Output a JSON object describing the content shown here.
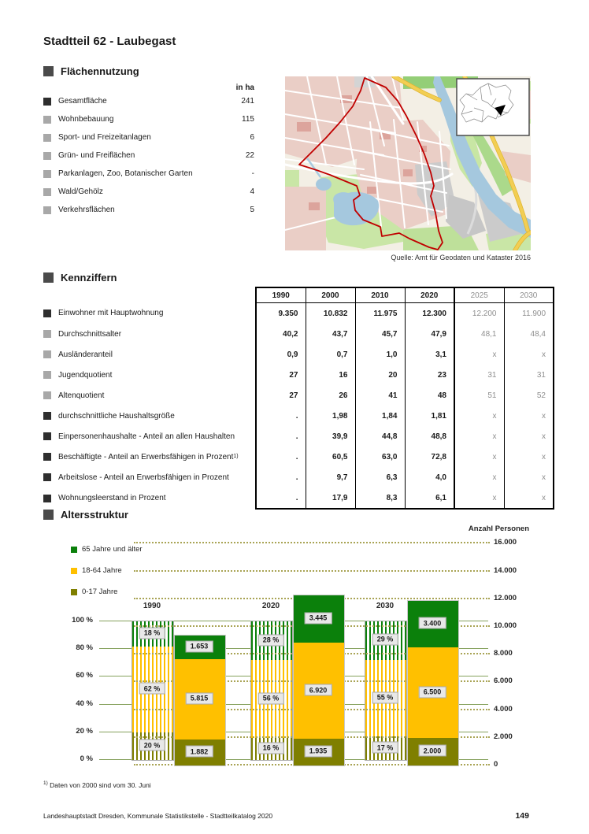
{
  "page": {
    "title": "Stadtteil 62 - Laubegast",
    "footnote_marker": "1)",
    "footnote_text": "Daten von 2000 sind vom 30. Juni",
    "footer_text": "Landeshauptstadt Dresden, Kommunale Statistikstelle - Stadtteilkatalog 2020",
    "page_number": "149"
  },
  "land_use": {
    "section_title": "Flächennutzung",
    "unit_label": "in ha",
    "rows": [
      {
        "label": "Gesamtfläche",
        "value": "241",
        "bullet": "dark"
      },
      {
        "label": "Wohnbebauung",
        "value": "115",
        "bullet": "gray"
      },
      {
        "label": "Sport- und Freizeitanlagen",
        "value": "6",
        "bullet": "gray"
      },
      {
        "label": "Grün- und Freiflächen",
        "value": "22",
        "bullet": "gray"
      },
      {
        "label": "Parkanlagen, Zoo, Botanischer Garten",
        "value": "-",
        "bullet": "gray"
      },
      {
        "label": "Wald/Gehölz",
        "value": "4",
        "bullet": "gray"
      },
      {
        "label": "Verkehrsflächen",
        "value": "5",
        "bullet": "gray"
      }
    ]
  },
  "map": {
    "caption": "Quelle: Amt für Geodaten und Kataster 2016"
  },
  "key_figures": {
    "section_title": "Kennziffern",
    "years": [
      {
        "label": "1990",
        "forecast": false
      },
      {
        "label": "2000",
        "forecast": false
      },
      {
        "label": "2010",
        "forecast": false
      },
      {
        "label": "2020",
        "forecast": false
      },
      {
        "label": "2025",
        "forecast": true
      },
      {
        "label": "2030",
        "forecast": true
      }
    ],
    "rows": [
      {
        "label": "Einwohner mit Hauptwohnung",
        "bullet": "dark",
        "values": [
          "9.350",
          "10.832",
          "11.975",
          "12.300",
          "12.200",
          "11.900"
        ]
      },
      {
        "label": "Durchschnittsalter",
        "bullet": "gray",
        "values": [
          "40,2",
          "43,7",
          "45,7",
          "47,9",
          "48,1",
          "48,4"
        ]
      },
      {
        "label": "Ausländeranteil",
        "bullet": "gray",
        "values": [
          "0,9",
          "0,7",
          "1,0",
          "3,1",
          "x",
          "x"
        ]
      },
      {
        "label": "Jugendquotient",
        "bullet": "gray",
        "values": [
          "27",
          "16",
          "20",
          "23",
          "31",
          "31"
        ]
      },
      {
        "label": "Altenquotient",
        "bullet": "gray",
        "values": [
          "27",
          "26",
          "41",
          "48",
          "51",
          "52"
        ]
      },
      {
        "label": "durchschnittliche Haushaltsgröße",
        "bullet": "dark",
        "values": [
          ".",
          "1,98",
          "1,84",
          "1,81",
          "x",
          "x"
        ]
      },
      {
        "label": "Einpersonenhaushalte - Anteil an allen Haushalten",
        "bullet": "dark",
        "values": [
          ".",
          "39,9",
          "44,8",
          "48,8",
          "x",
          "x"
        ]
      },
      {
        "label": "Beschäftigte - Anteil an Erwerbsfähigen in Prozent",
        "sup": "1)",
        "bullet": "dark",
        "values": [
          ".",
          "60,5",
          "63,0",
          "72,8",
          "x",
          "x"
        ]
      },
      {
        "label": "Arbeitslose - Anteil an Erwerbsfähigen in Prozent",
        "bullet": "dark",
        "values": [
          ".",
          "9,7",
          "6,3",
          "4,0",
          "x",
          "x"
        ]
      },
      {
        "label": "Wohnungsleerstand in Prozent",
        "bullet": "dark",
        "values": [
          ".",
          "17,9",
          "8,3",
          "6,1",
          "x",
          "x"
        ]
      }
    ]
  },
  "chart_data": {
    "type": "bar",
    "title": "Altersstruktur",
    "value_axis_title": "Anzahl Personen",
    "categories": [
      "1990",
      "2020",
      "2030"
    ],
    "legend": [
      {
        "key": "age_65_plus",
        "label": "65 Jahre und älter",
        "color": "#0b800b"
      },
      {
        "key": "age_18_64",
        "label": "18-64 Jahre",
        "color": "#ffc000"
      },
      {
        "key": "age_0_17",
        "label": "0-17 Jahre",
        "color": "#7f7f00"
      }
    ],
    "left_axis": {
      "unit": "percent",
      "ticks": [
        {
          "label": "100 %",
          "value": 100
        },
        {
          "label": "80 %",
          "value": 80
        },
        {
          "label": "60 %",
          "value": 60
        },
        {
          "label": "40 %",
          "value": 40
        },
        {
          "label": "20 %",
          "value": 20
        },
        {
          "label": "0 %",
          "value": 0
        }
      ]
    },
    "right_axis": {
      "unit": "persons",
      "max": 16000,
      "ticks": [
        {
          "label": "16.000",
          "value": 16000
        },
        {
          "label": "14.000",
          "value": 14000
        },
        {
          "label": "12.000",
          "value": 12000
        },
        {
          "label": "10.000",
          "value": 10000
        },
        {
          "label": "8.000",
          "value": 8000
        },
        {
          "label": "6.000",
          "value": 6000
        },
        {
          "label": "4.000",
          "value": 4000
        },
        {
          "label": "2.000",
          "value": 2000
        },
        {
          "label": "0",
          "value": 0
        }
      ]
    },
    "groups": [
      {
        "year": "1990",
        "percent_bar": [
          {
            "key": "age_0_17",
            "value": 20,
            "label": "20 %"
          },
          {
            "key": "age_18_64",
            "value": 62,
            "label": "62 %"
          },
          {
            "key": "age_65_plus",
            "value": 18,
            "label": "18 %"
          }
        ],
        "absolute_bar": [
          {
            "key": "age_0_17",
            "value": 1882,
            "label": "1.882"
          },
          {
            "key": "age_18_64",
            "value": 5815,
            "label": "5.815"
          },
          {
            "key": "age_65_plus",
            "value": 1653,
            "label": "1.653"
          }
        ]
      },
      {
        "year": "2020",
        "percent_bar": [
          {
            "key": "age_0_17",
            "value": 16,
            "label": "16 %"
          },
          {
            "key": "age_18_64",
            "value": 56,
            "label": "56 %"
          },
          {
            "key": "age_65_plus",
            "value": 28,
            "label": "28 %"
          }
        ],
        "absolute_bar": [
          {
            "key": "age_0_17",
            "value": 1935,
            "label": "1.935"
          },
          {
            "key": "age_18_64",
            "value": 6920,
            "label": "6.920"
          },
          {
            "key": "age_65_plus",
            "value": 3445,
            "label": "3.445"
          }
        ]
      },
      {
        "year": "2030",
        "percent_bar": [
          {
            "key": "age_0_17",
            "value": 17,
            "label": "17 %"
          },
          {
            "key": "age_18_64",
            "value": 55,
            "label": "55 %"
          },
          {
            "key": "age_65_plus",
            "value": 29,
            "label": "29 %"
          }
        ],
        "absolute_bar": [
          {
            "key": "age_0_17",
            "value": 2000,
            "label": "2.000"
          },
          {
            "key": "age_18_64",
            "value": 6500,
            "label": "6.500"
          },
          {
            "key": "age_65_plus",
            "value": 3400,
            "label": "3.400"
          }
        ]
      }
    ]
  }
}
